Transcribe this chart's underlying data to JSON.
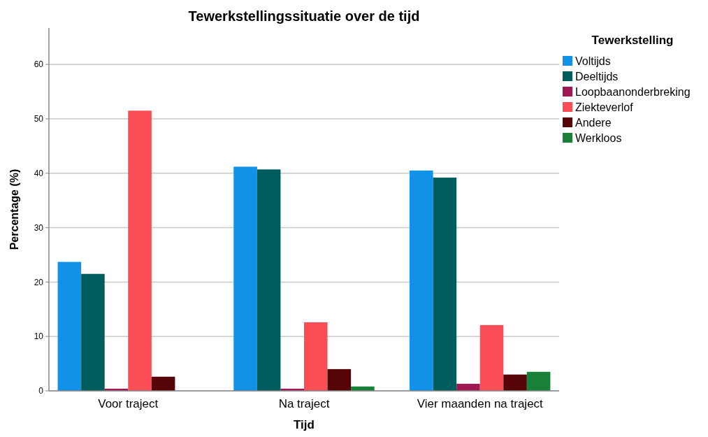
{
  "chart_data": {
    "type": "bar",
    "title": "Tewerkstellingssituatie over de tijd",
    "xlabel": "Tijd",
    "ylabel": "Percentage (%)",
    "legend_title": "Tewerkstelling",
    "categories": [
      "Voor traject",
      "Na traject",
      "Vier maanden na traject"
    ],
    "series": [
      {
        "name": "Voltijds",
        "color": "#1192e8",
        "values": [
          23.7,
          41.2,
          40.5
        ]
      },
      {
        "name": "Deeltijds",
        "color": "#005d5d",
        "values": [
          21.5,
          40.7,
          39.2
        ]
      },
      {
        "name": "Loopbaanonderbreking",
        "color": "#9f1853",
        "values": [
          0.4,
          0.4,
          1.3
        ]
      },
      {
        "name": "Ziekteverlof",
        "color": "#fa4d56",
        "values": [
          51.5,
          12.6,
          12.1
        ]
      },
      {
        "name": "Andere",
        "color": "#570408",
        "values": [
          2.6,
          4.0,
          3.0
        ]
      },
      {
        "name": "Werkloos",
        "color": "#198038",
        "values": [
          0,
          0.8,
          3.5
        ]
      }
    ],
    "ylim": [
      0,
      66.7
    ],
    "yticks": [
      0,
      10,
      20,
      30,
      40,
      50,
      60
    ],
    "grid": "y",
    "legend": "top right"
  }
}
